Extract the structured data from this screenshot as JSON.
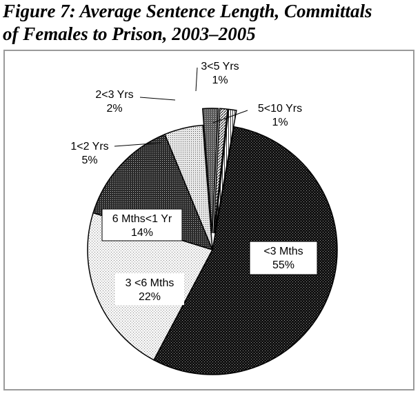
{
  "figure": {
    "title_line1": "Figure 7: Average Sentence Length, Committals",
    "title_line2": "of Females to Prison, 2003–2005"
  },
  "chart_data": {
    "type": "pie",
    "title": "Figure 7: Average Sentence Length, Committals of Females to Prison, 2003–2005",
    "slices": [
      {
        "category": "<3 Mths",
        "value": 55,
        "value_label": "55%",
        "fill": "dark-stipple"
      },
      {
        "category": "3 <6 Mths",
        "value": 22,
        "value_label": "22%",
        "fill": "light-stipple"
      },
      {
        "category": "6 Mths<1 Yr",
        "value": 14,
        "value_label": "14%",
        "fill": "dark-dots"
      },
      {
        "category": "1<2 Yrs",
        "value": 5,
        "value_label": "5%",
        "fill": "light-dots"
      },
      {
        "category": "2<3 Yrs",
        "value": 2,
        "value_label": "2%",
        "fill": "crosshatch",
        "exploded": true
      },
      {
        "category": "3<5 Yrs",
        "value": 1,
        "value_label": "1%",
        "fill": "diagonal-stripes",
        "exploded": true
      },
      {
        "category": "5<10 Yrs",
        "value": 1,
        "value_label": "1%",
        "fill": "vertical-stripes",
        "exploded": true
      }
    ],
    "legend": "none",
    "labels": "category and percent next to slices"
  }
}
